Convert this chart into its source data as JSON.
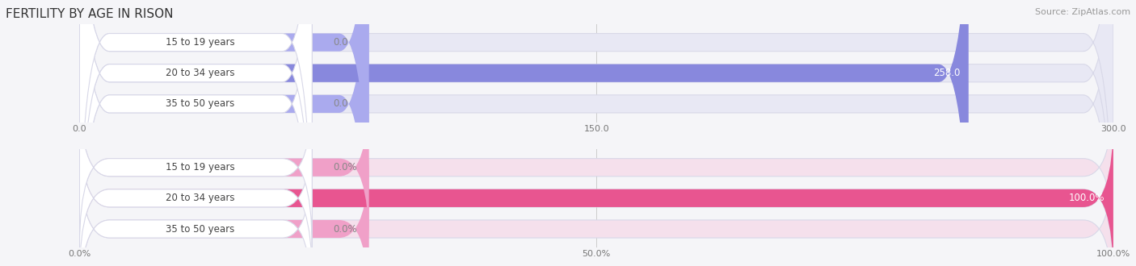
{
  "title": "FERTILITY BY AGE IN RISON",
  "source": "Source: ZipAtlas.com",
  "top_chart": {
    "categories": [
      "15 to 19 years",
      "20 to 34 years",
      "35 to 50 years"
    ],
    "values": [
      0.0,
      258.0,
      0.0
    ],
    "xlim": [
      0,
      300
    ],
    "xticks": [
      0.0,
      150.0,
      300.0
    ],
    "xtick_labels": [
      "0.0",
      "150.0",
      "300.0"
    ],
    "bar_color": "#8888dd",
    "bar_bg_color": "#e8e8f4",
    "label_bg_color": "#ffffff",
    "label_color": "#444444",
    "value_color_inside": "#ffffff",
    "value_color_outside": "#888888",
    "small_bar_color": "#aaaaee"
  },
  "bottom_chart": {
    "categories": [
      "15 to 19 years",
      "20 to 34 years",
      "35 to 50 years"
    ],
    "values": [
      0.0,
      100.0,
      0.0
    ],
    "xlim": [
      0,
      100
    ],
    "xticks": [
      0.0,
      50.0,
      100.0
    ],
    "xtick_labels": [
      "0.0%",
      "50.0%",
      "100.0%"
    ],
    "bar_color": "#e85590",
    "bar_bg_color": "#f5e0ec",
    "label_bg_color": "#ffffff",
    "label_color": "#444444",
    "value_color_inside": "#ffffff",
    "value_color_outside": "#888888",
    "small_bar_color": "#f0a0c8"
  },
  "bg_color": "#f5f5f8",
  "title_fontsize": 11,
  "label_fontsize": 8.5,
  "tick_fontsize": 8.0,
  "source_fontsize": 8.0
}
